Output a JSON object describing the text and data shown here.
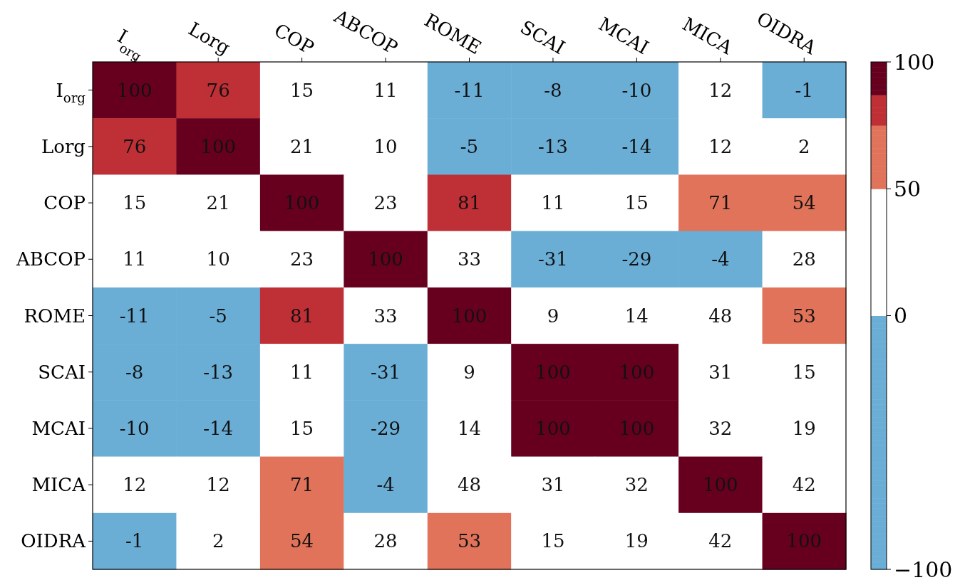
{
  "chart_data": {
    "type": "heatmap",
    "categories": [
      "I$_{org}$",
      "Lorg",
      "COP",
      "ABCOP",
      "ROME",
      "SCAI",
      "MCAI",
      "MICA",
      "OIDRA"
    ],
    "y_categories": [
      "I$_{org}$",
      "Lorg",
      "COP",
      "ABCOP",
      "ROME",
      "SCAI",
      "MCAI",
      "MICA",
      "OIDRA"
    ],
    "cells": [
      [
        100,
        76,
        15,
        11,
        -11,
        -8,
        -10,
        12,
        -1
      ],
      [
        76,
        100,
        21,
        10,
        -5,
        -13,
        -14,
        12,
        2
      ],
      [
        15,
        21,
        100,
        23,
        81,
        11,
        15,
        71,
        54
      ],
      [
        11,
        10,
        23,
        100,
        33,
        -31,
        -29,
        -4,
        28
      ],
      [
        -11,
        -5,
        81,
        33,
        100,
        9,
        14,
        48,
        53
      ],
      [
        -8,
        -13,
        11,
        -31,
        9,
        100,
        100,
        31,
        15
      ],
      [
        -10,
        -14,
        15,
        -29,
        14,
        100,
        100,
        32,
        19
      ],
      [
        12,
        12,
        71,
        -4,
        48,
        31,
        32,
        100,
        42
      ],
      [
        -1,
        2,
        54,
        28,
        53,
        15,
        19,
        42,
        100
      ]
    ],
    "clim": [
      -100,
      100
    ],
    "cticks": [
      -100,
      0,
      50,
      100
    ],
    "data_labels": true
  }
}
